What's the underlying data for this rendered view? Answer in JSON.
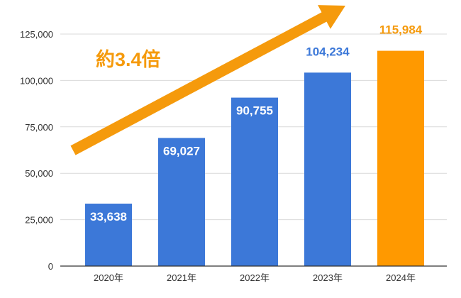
{
  "chart_data": {
    "type": "bar",
    "categories": [
      "2020年",
      "2021年",
      "2022年",
      "2023年",
      "2024年"
    ],
    "values": [
      33638,
      69027,
      90755,
      104234,
      115984
    ],
    "data_labels": [
      "33,638",
      "69,027",
      "90,755",
      "104,234",
      "115,984"
    ],
    "ylim": [
      0,
      125000
    ],
    "yticks": [
      0,
      25000,
      50000,
      75000,
      100000,
      125000
    ],
    "ytick_labels": [
      "0",
      "25,000",
      "50,000",
      "75,000",
      "100,000",
      "125,000"
    ],
    "grid": true,
    "bar_colors": [
      "#3c78d8",
      "#3c78d8",
      "#3c78d8",
      "#3c78d8",
      "#ff9900"
    ],
    "label_colors": [
      "#ffffff",
      "#ffffff",
      "#ffffff",
      "#3c78d8",
      "#f59a0c"
    ],
    "annotation": {
      "text": "約3.4倍",
      "color": "#f59a0c",
      "arrow": "rising-trend-arrow"
    }
  }
}
